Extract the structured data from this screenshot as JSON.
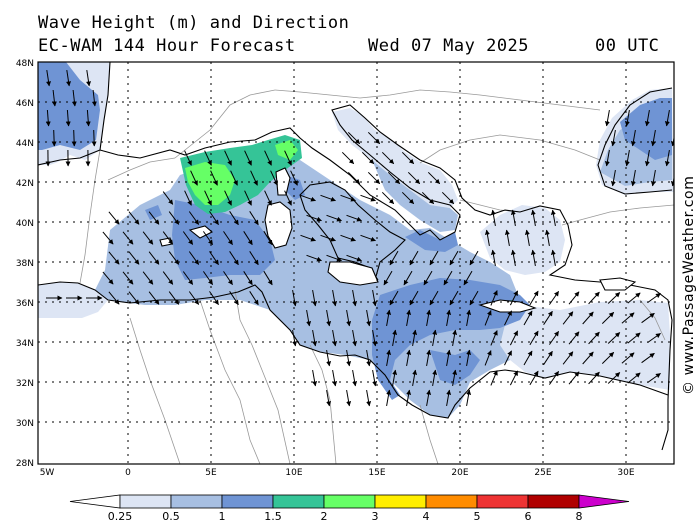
{
  "header": {
    "title": "Wave Height (m) and Direction",
    "subtitle": "EC-WAM 144 Hour Forecast",
    "date": "Wed 07 May 2025",
    "run": "00 UTC"
  },
  "credit": "© www.PassageWeather.com",
  "map": {
    "region": "Mediterranean Sea",
    "lat_labels": [
      "48N",
      "46N",
      "44N",
      "42N",
      "40N",
      "38N",
      "36N",
      "34N",
      "32N",
      "30N",
      "28N"
    ],
    "lon_labels": [
      "5W",
      "0",
      "5E",
      "10E",
      "15E",
      "20E",
      "25E",
      "30E"
    ],
    "colors": {
      "land": "#ffffff",
      "sea_lt_0_5": "#dde5f4",
      "sea_0_5_1": "#a7bfe2",
      "sea_1_1_5": "#6f94d4",
      "sea_1_5_2": "#35c497",
      "sea_2_3": "#66ff66",
      "coast": "#000000",
      "border": "#999999"
    }
  },
  "colorbar": {
    "unit": "m",
    "labels": [
      "0.25",
      "0.5",
      "1",
      "1.5",
      "2",
      "3",
      "4",
      "5",
      "6",
      "8"
    ],
    "colors": [
      "#ffffff",
      "#dde5f4",
      "#a7bfe2",
      "#6f94d4",
      "#35c497",
      "#66ff66",
      "#ffee00",
      "#ff8c00",
      "#ee3333",
      "#b00000",
      "#cc00cc"
    ]
  }
}
